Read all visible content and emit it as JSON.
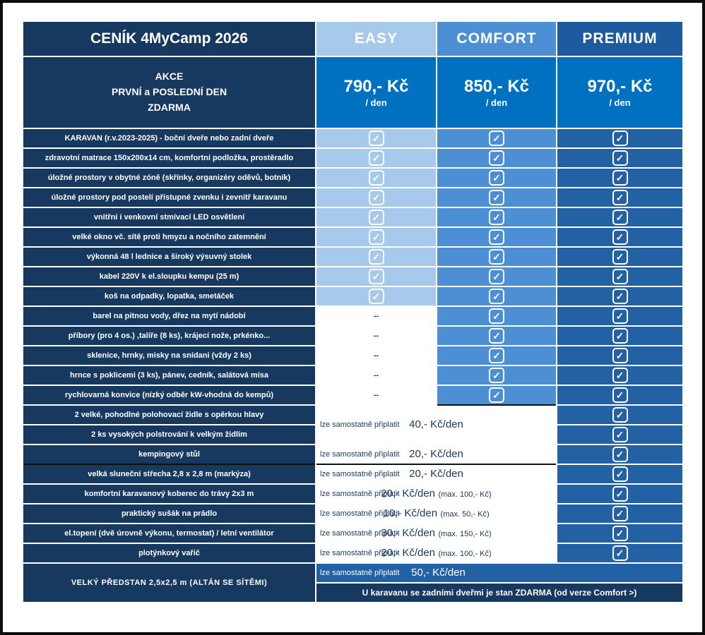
{
  "title": "CENÍK 4MyCamp 2026",
  "plans": [
    {
      "name": "EASY",
      "price": "790,- Kč",
      "per": "/ den"
    },
    {
      "name": "COMFORT",
      "price": "850,- Kč",
      "per": "/ den"
    },
    {
      "name": "PREMIUM",
      "price": "970,- Kč",
      "per": "/ den"
    }
  ],
  "promo": {
    "line1": "AKCE",
    "line2": "PRVNÍ a POSLEDNÍ DEN",
    "line3": "ZDARMA"
  },
  "icons": {
    "check_glyph": "✓"
  },
  "dash": "--",
  "features": [
    {
      "label": "KARAVAN (r.v.2023-2025) - boční dveře nebo zadní dveře"
    },
    {
      "label": "zdravotní matrace 150x200x14 cm, komfortní podložka, prostěradlo"
    },
    {
      "label": "úložné prostory v obytné zóně (skřínky, organizéry oděvů, botník)"
    },
    {
      "label": "úložné prostory pod postelí přístupné zvenku i zevnitř karavanu"
    },
    {
      "label": "vnitřní i venkovní stmívací LED osvětlení"
    },
    {
      "label": "velké okno vč. sítě proti hmyzu a nočního zatemnění"
    },
    {
      "label": "výkonná 48 l lednice a široký výsuvný stolek"
    },
    {
      "label": "kabel 220V k el.sloupku kempu (25 m)"
    },
    {
      "label": "koš na odpadky, lopatka, smetáček"
    },
    {
      "label": "barel na pitnou vody, dřez na mytí nádobí"
    },
    {
      "label": "příbory (pro 4 os.) ,talíře (8 ks), krájecí nože, prkénko..."
    },
    {
      "label": "sklenice, hrnky, misky na snídani (vždy 2 ks)"
    },
    {
      "label": "hrnce s poklicemi (3 ks), pánev, cedník, salátová mísa"
    },
    {
      "label": "rychlovarná konvice (nízký odběr kW-vhodná do kempů)"
    },
    {
      "label": "2 velké, pohodlné polohovací židle s opěrkou hlavy"
    },
    {
      "label": "2 ks vysokých polstrování k velkým židlím"
    },
    {
      "label": "kempingový stůl"
    },
    {
      "label": "velká sluneční střecha 2,8 x 2,8 m (markýza)"
    },
    {
      "label": "komfortní karavanový  koberec do trávy 2x3 m"
    },
    {
      "label": "praktický sušák na prádlo"
    },
    {
      "label": "el.topení (dvě úrovně výkonu, termostat) / letní ventilátor"
    },
    {
      "label": "plotýnkový vařič"
    },
    {
      "label": "VELKÝ PŘEDSTAN 2,5x2,5 m (ALTÁN SE SÍTĚMI)"
    }
  ],
  "addons": {
    "label": "lze samostatně připlatit",
    "chairs": {
      "price": "40,- Kč/den",
      "max": ""
    },
    "table": {
      "price": "20,- Kč/den",
      "max": ""
    },
    "roof": {
      "price": "20,- Kč/den",
      "max": ""
    },
    "carpet": {
      "price": "20,- Kč/den",
      "max": "(max. 100,- Kč)"
    },
    "dryer": {
      "price": "10,- Kč/den",
      "max": "(max. 50,- Kč)"
    },
    "heating": {
      "price": "30,- Kč/den",
      "max": "(max. 150,- Kč)"
    },
    "cooker": {
      "price": "20,- Kč/den",
      "max": "(max. 100,- Kč)"
    },
    "tent": {
      "price": "50,- Kč/den",
      "max": ""
    }
  },
  "bottom_note": "U karavanu se zadními dveřmi je stan ZDARMA (od verze Comfort >)",
  "colors": {
    "navy": "#17395f",
    "easy": "#a7caec",
    "comfort": "#4d8fd5",
    "premium": "#2161a4",
    "price_blue": "#0070c0"
  }
}
